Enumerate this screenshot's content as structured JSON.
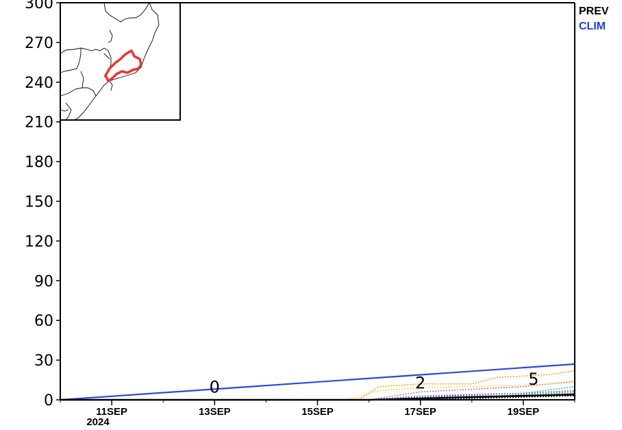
{
  "chart_data": {
    "type": "line",
    "title": "",
    "xlabel": "",
    "ylabel": "",
    "x_range": [
      "2024-09-10",
      "2024-09-20"
    ],
    "ylim": [
      0,
      300
    ],
    "y_ticks": [
      0,
      30,
      60,
      90,
      120,
      150,
      180,
      210,
      240,
      270,
      300
    ],
    "x_ticks": [
      {
        "date": "2024-09-11",
        "label": "11SEP"
      },
      {
        "date": "2024-09-13",
        "label": "13SEP"
      },
      {
        "date": "2024-09-15",
        "label": "15SEP"
      },
      {
        "date": "2024-09-17",
        "label": "17SEP"
      },
      {
        "date": "2024-09-19",
        "label": "19SEP"
      }
    ],
    "year_label": "2024",
    "grid": false,
    "legend_placement": "right",
    "legend": [
      {
        "label": "PREV",
        "color": "#000000"
      },
      {
        "label": "CLIM",
        "color": "#1f3fe0"
      }
    ],
    "series": [
      {
        "name": "CLIM",
        "color": "#2a45e6",
        "style": "solid",
        "x": [
          "2024-09-10",
          "2024-09-20"
        ],
        "y": [
          0,
          27
        ]
      },
      {
        "name": "PREV",
        "color": "#000000",
        "style": "solid",
        "x": [
          "2024-09-10",
          "2024-09-16",
          "2024-09-17",
          "2024-09-18",
          "2024-09-19",
          "2024-09-20"
        ],
        "y": [
          0,
          0,
          1,
          2,
          3,
          4
        ]
      },
      {
        "color": "#ff8c00",
        "style": "dotted",
        "x": [
          "2024-09-10",
          "2024-09-15.8",
          "2024-09-16.2",
          "2024-09-17",
          "2024-09-18",
          "2024-09-18.5",
          "2024-09-19.5",
          "2024-09-20"
        ],
        "y": [
          0,
          0,
          10,
          12,
          12,
          17,
          19,
          22
        ]
      },
      {
        "color": "#e040c0",
        "style": "dotted",
        "x": [
          "2024-09-10",
          "2024-09-16",
          "2024-09-17",
          "2024-09-18",
          "2024-09-19",
          "2024-09-20"
        ],
        "y": [
          0,
          0,
          6,
          8,
          10,
          14
        ]
      },
      {
        "color": "#ffd700",
        "style": "dotted",
        "x": [
          "2024-09-10",
          "2024-09-15.6",
          "2024-09-16.2",
          "2024-09-17",
          "2024-09-18",
          "2024-09-19",
          "2024-09-20"
        ],
        "y": [
          0,
          0,
          7,
          9,
          10,
          11,
          13
        ]
      },
      {
        "color": "#00b0b0",
        "style": "dotted",
        "x": [
          "2024-09-10",
          "2024-09-16",
          "2024-09-17",
          "2024-09-18",
          "2024-09-19",
          "2024-09-20"
        ],
        "y": [
          0,
          0,
          3,
          4,
          5,
          10
        ]
      },
      {
        "color": "#3050ff",
        "style": "dotted",
        "x": [
          "2024-09-10",
          "2024-09-16",
          "2024-09-17",
          "2024-09-18",
          "2024-09-19",
          "2024-09-20"
        ],
        "y": [
          0,
          0,
          2,
          4,
          5,
          7
        ]
      },
      {
        "color": "#20a020",
        "style": "dotted",
        "x": [
          "2024-09-10",
          "2024-09-16",
          "2024-09-17",
          "2024-09-18",
          "2024-09-19",
          "2024-09-20"
        ],
        "y": [
          0,
          0,
          1,
          2,
          4,
          6
        ]
      },
      {
        "color": "#a030a0",
        "style": "dotted",
        "x": [
          "2024-09-10",
          "2024-09-16",
          "2024-09-17",
          "2024-09-18",
          "2024-09-19",
          "2024-09-20"
        ],
        "y": [
          0,
          0,
          2,
          3,
          3,
          5
        ]
      },
      {
        "color": "#000000",
        "style": "dotted",
        "x": [
          "2024-09-10",
          "2024-09-16",
          "2024-09-17",
          "2024-09-18",
          "2024-09-19",
          "2024-09-20"
        ],
        "y": [
          0,
          0,
          1,
          1,
          2,
          3
        ]
      }
    ],
    "annotations": [
      {
        "text": "0",
        "x": "2024-09-13",
        "y": 7
      },
      {
        "text": "2",
        "x": "2024-09-17",
        "y": 10
      },
      {
        "text": "5",
        "x": "2024-09-19.2",
        "y": 13
      }
    ],
    "inset_map": {
      "highlight_color": "#ee3333"
    }
  }
}
